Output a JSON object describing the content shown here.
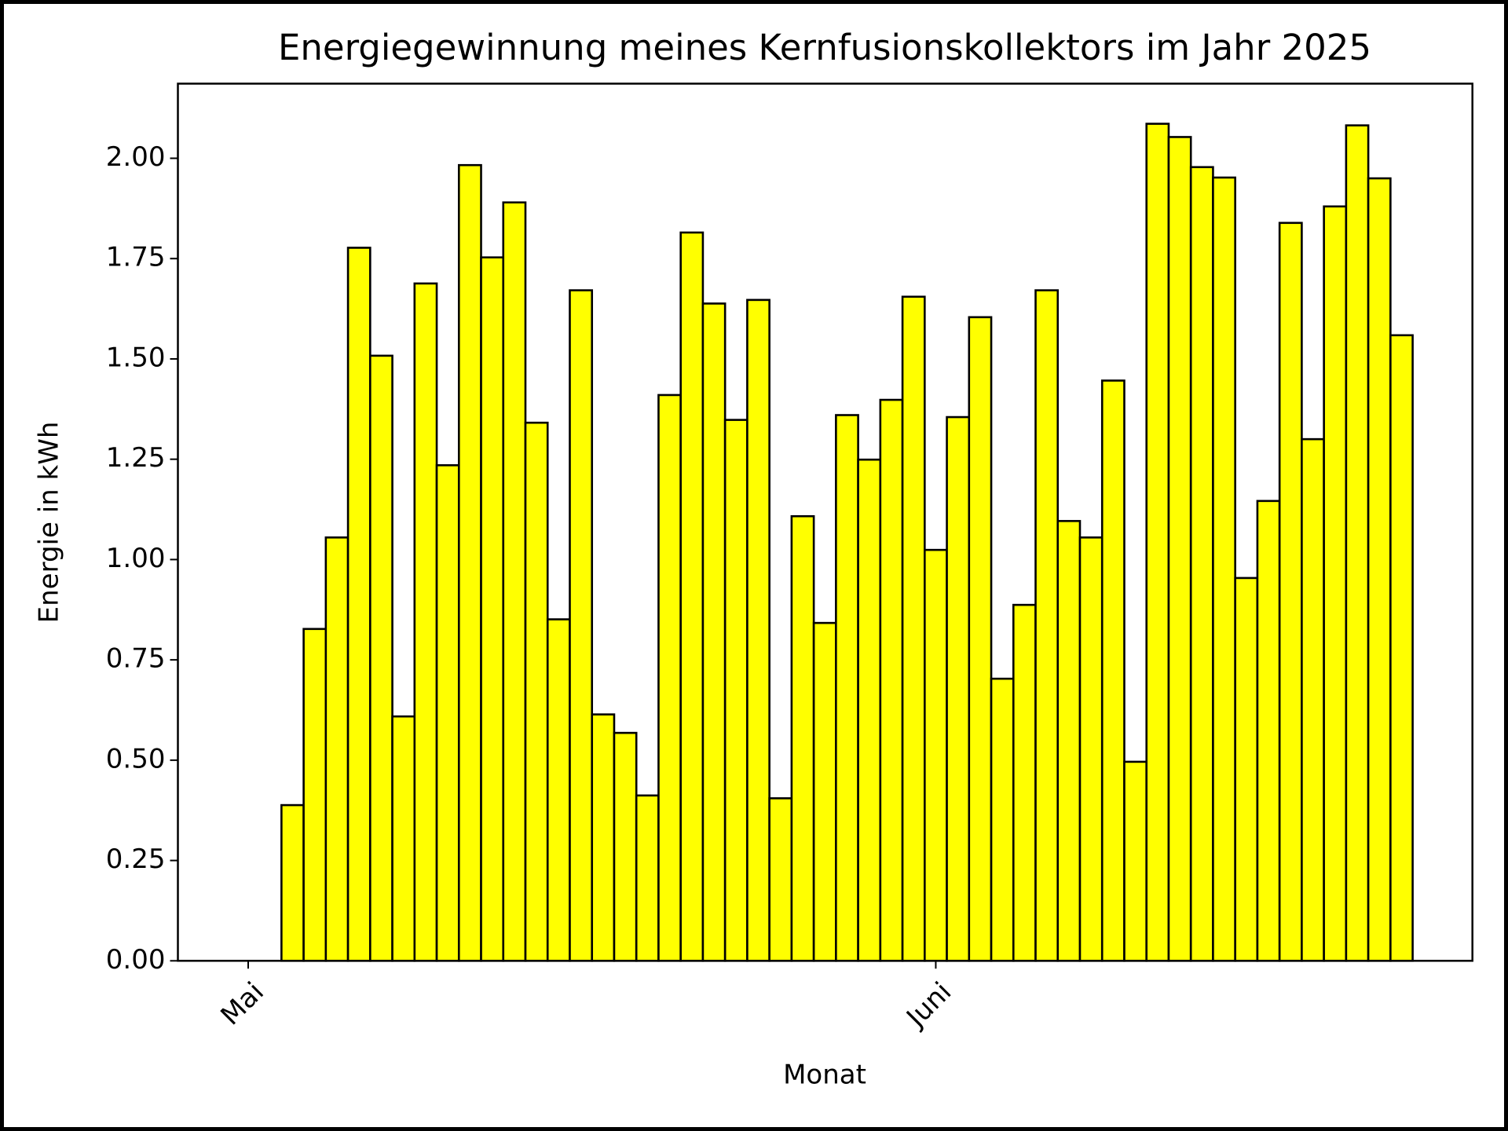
{
  "chart_data": {
    "type": "bar",
    "title": "Energiegewinnung meines Kernfusionskollektors im Jahr 2025",
    "xlabel": "Monat",
    "ylabel": "Energie in kWh",
    "categories": [
      "Mai",
      null,
      null,
      null,
      null,
      null,
      null,
      null,
      null,
      null,
      null,
      null,
      null,
      null,
      null,
      null,
      null,
      null,
      null,
      null,
      null,
      null,
      null,
      null,
      null,
      null,
      null,
      null,
      null,
      null,
      null,
      "Juni",
      null,
      null,
      null,
      null,
      null,
      null,
      null,
      null,
      null,
      null,
      null,
      null,
      null,
      null,
      null,
      null,
      null,
      null,
      null,
      null,
      null
    ],
    "values": [
      0,
      0,
      0.388,
      0.827,
      1.055,
      1.777,
      1.508,
      0.609,
      1.688,
      1.235,
      1.983,
      1.753,
      1.89,
      1.341,
      0.851,
      1.671,
      0.614,
      0.568,
      0.412,
      1.41,
      1.815,
      1.638,
      1.348,
      1.647,
      0.405,
      1.108,
      0.842,
      1.36,
      1.249,
      1.398,
      1.655,
      1.024,
      1.355,
      1.604,
      0.703,
      0.887,
      1.671,
      1.096,
      1.055,
      1.446,
      0.496,
      2.086,
      2.053,
      1.978,
      1.952,
      0.954,
      1.146,
      1.839,
      1.3,
      1.88,
      2.082,
      1.95,
      1.559
    ],
    "color": "#ffff00",
    "edgecolor": "#000000",
    "ylim": [
      0,
      2.186
    ],
    "yticks": [
      {
        "value": 0,
        "label": "0.00"
      },
      {
        "value": 0.25,
        "label": "0.25"
      },
      {
        "value": 0.5,
        "label": "0.50"
      },
      {
        "value": 0.75,
        "label": "0.75"
      },
      {
        "value": 1,
        "label": "1.00"
      },
      {
        "value": 1.25,
        "label": "1.25"
      },
      {
        "value": 1.5,
        "label": "1.50"
      },
      {
        "value": 1.75,
        "label": "1.75"
      },
      {
        "value": 2,
        "label": "2.00"
      }
    ],
    "grid": false
  }
}
